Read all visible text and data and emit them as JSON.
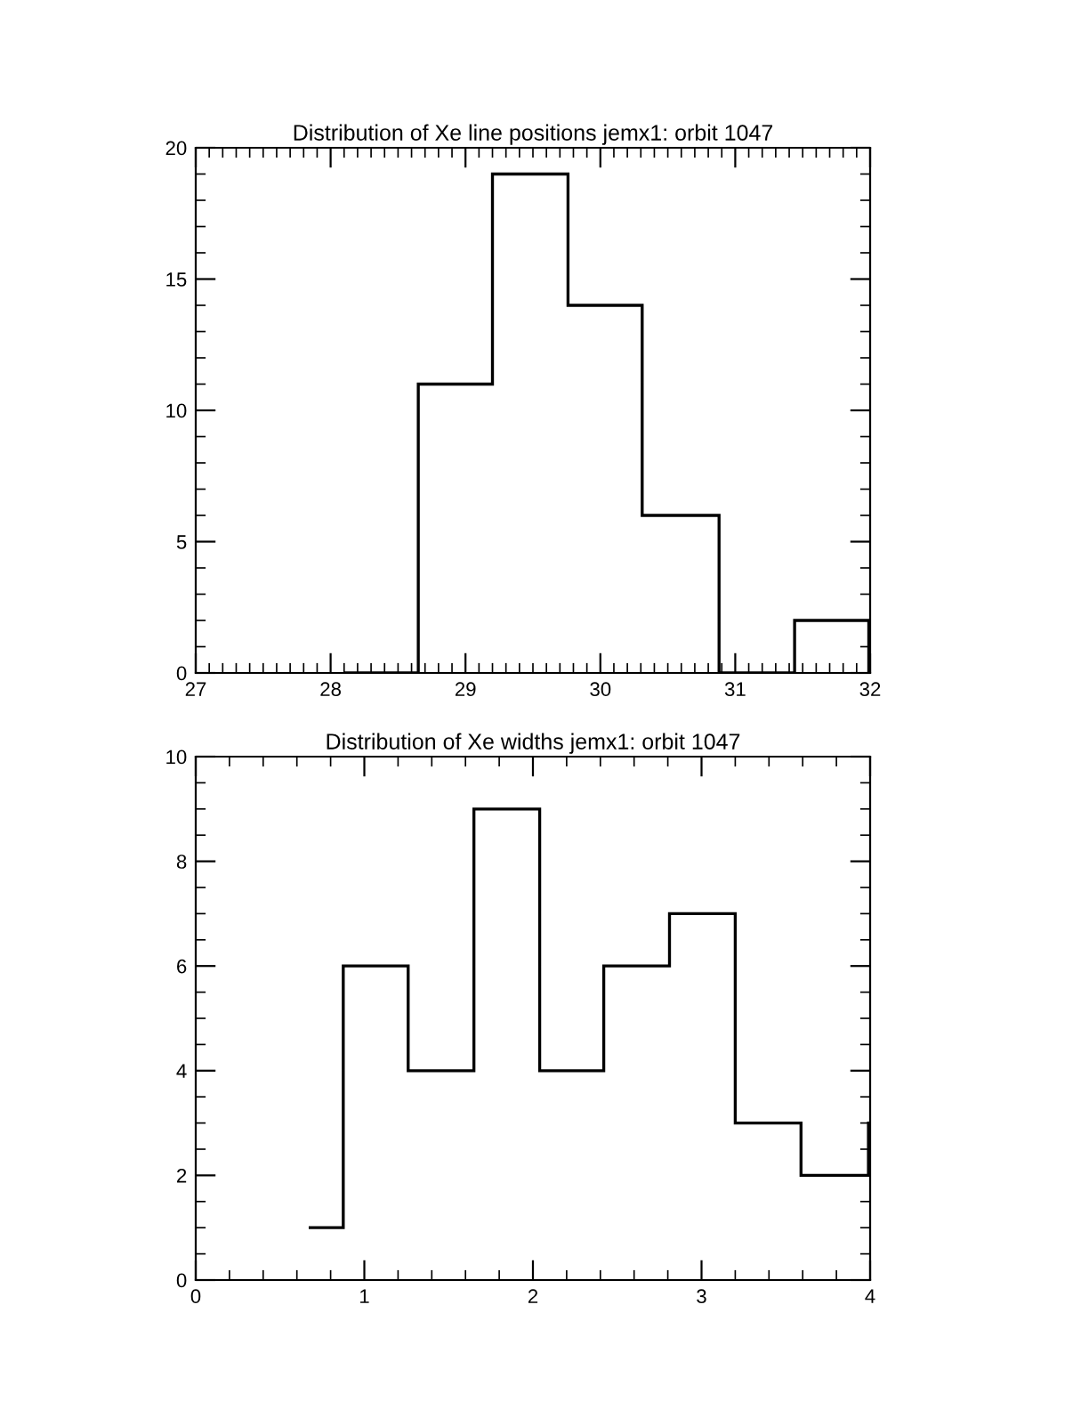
{
  "chart_data": [
    {
      "type": "histogram",
      "title": "Distribution of Xe line positions jemx1: orbit 1047",
      "color": "#000000",
      "bins": [
        28.1,
        28.65,
        29.2,
        29.76,
        30.31,
        30.88,
        31.44,
        31.99,
        32.0
      ],
      "values": [
        0,
        11,
        19,
        14,
        6,
        0,
        2,
        0
      ],
      "xlim": [
        27,
        32
      ],
      "xticks": [
        27,
        28,
        29,
        30,
        31,
        32
      ],
      "ylim": [
        0,
        20
      ],
      "yticks": [
        0,
        5,
        10,
        15,
        20
      ],
      "grid": false
    },
    {
      "type": "histogram",
      "title": "Distribution of Xe widths jemx1: orbit 1047",
      "color": "#000000",
      "bins": [
        0.67,
        0.875,
        1.26,
        1.65,
        2.04,
        2.42,
        2.81,
        3.2,
        3.59,
        3.99,
        4.0
      ],
      "values": [
        1,
        6,
        4,
        9,
        4,
        6,
        7,
        3,
        2,
        3
      ],
      "xlim": [
        0,
        4
      ],
      "xticks": [
        0,
        1,
        2,
        3,
        4
      ],
      "ylim": [
        0,
        10
      ],
      "yticks": [
        0,
        2,
        4,
        6,
        8,
        10
      ],
      "grid": false
    }
  ]
}
